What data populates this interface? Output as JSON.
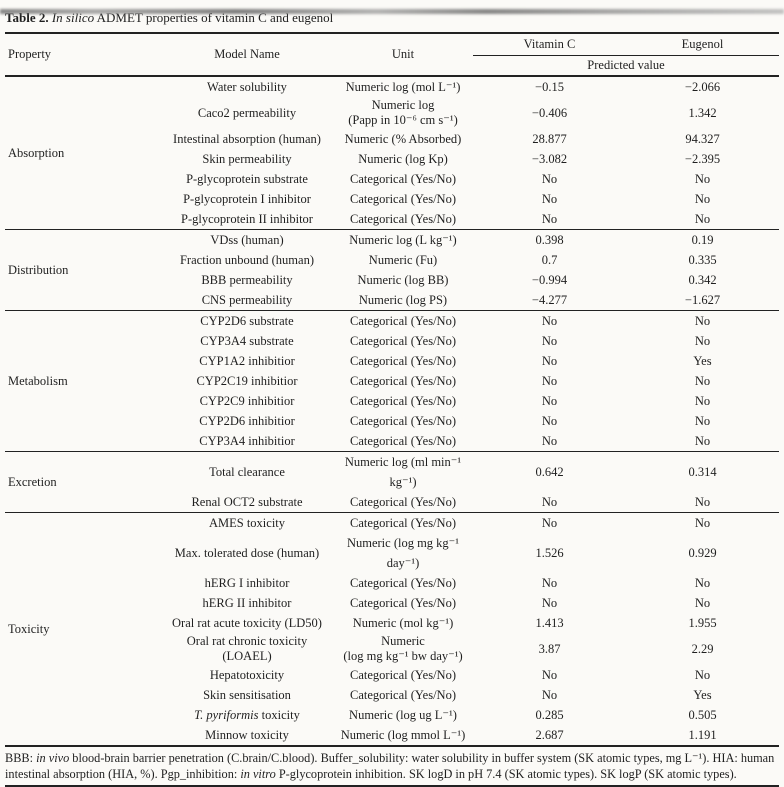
{
  "caption": {
    "prefix": "Table 2. ",
    "italic_part": "In silico",
    "rest": " ADMET properties of vitamin C and eugenol"
  },
  "header": {
    "property": "Property",
    "model_name": "Model Name",
    "unit": "Unit",
    "vitamin_c": "Vitamin C",
    "eugenol": "Eugenol",
    "predicted_value": "Predicted value"
  },
  "colors": {
    "text": "#1f1f1f",
    "rule": "#222222",
    "background": "#fbfaf7"
  },
  "sections": [
    {
      "property": "Absorption",
      "rows": [
        {
          "model": "Water solubility",
          "unit": "Numeric log (mol L⁻¹)",
          "vitamin_c": "−0.15",
          "eugenol": "−2.066"
        },
        {
          "model": "Caco2 permeability",
          "unit": "Numeric log\n(Papp in 10⁻⁶ cm s⁻¹)",
          "vitamin_c": "−0.406",
          "eugenol": "1.342"
        },
        {
          "model": "Intestinal absorption (human)",
          "unit": "Numeric (% Absorbed)",
          "vitamin_c": "28.877",
          "eugenol": "94.327"
        },
        {
          "model": "Skin permeability",
          "unit": "Numeric (log Kp)",
          "vitamin_c": "−3.082",
          "eugenol": "−2.395"
        },
        {
          "model": "P-glycoprotein substrate",
          "unit": "Categorical (Yes/No)",
          "vitamin_c": "No",
          "eugenol": "No"
        },
        {
          "model": "P-glycoprotein I inhibitor",
          "unit": "Categorical (Yes/No)",
          "vitamin_c": "No",
          "eugenol": "No"
        },
        {
          "model": "P-glycoprotein II inhibitor",
          "unit": "Categorical (Yes/No)",
          "vitamin_c": "No",
          "eugenol": "No"
        }
      ]
    },
    {
      "property": "Distribution",
      "rows": [
        {
          "model": "VDss (human)",
          "unit": "Numeric log (L kg⁻¹)",
          "vitamin_c": "0.398",
          "eugenol": "0.19"
        },
        {
          "model": "Fraction unbound (human)",
          "unit": "Numeric (Fu)",
          "vitamin_c": "0.7",
          "eugenol": "0.335"
        },
        {
          "model": "BBB permeability",
          "unit": "Numeric (log BB)",
          "vitamin_c": "−0.994",
          "eugenol": "0.342"
        },
        {
          "model": "CNS permeability",
          "unit": "Numeric (log PS)",
          "vitamin_c": "−4.277",
          "eugenol": "−1.627"
        }
      ]
    },
    {
      "property": "Metabolism",
      "rows": [
        {
          "model": "CYP2D6 substrate",
          "unit": "Categorical (Yes/No)",
          "vitamin_c": "No",
          "eugenol": "No"
        },
        {
          "model": "CYP3A4 substrate",
          "unit": "Categorical (Yes/No)",
          "vitamin_c": "No",
          "eugenol": "No"
        },
        {
          "model": "CYP1A2 inhibitior",
          "unit": "Categorical (Yes/No)",
          "vitamin_c": "No",
          "eugenol": "Yes"
        },
        {
          "model": "CYP2C19 inhibitior",
          "unit": "Categorical (Yes/No)",
          "vitamin_c": "No",
          "eugenol": "No"
        },
        {
          "model": "CYP2C9 inhibitior",
          "unit": "Categorical (Yes/No)",
          "vitamin_c": "No",
          "eugenol": "No"
        },
        {
          "model": "CYP2D6 inhibitior",
          "unit": "Categorical (Yes/No)",
          "vitamin_c": "No",
          "eugenol": "No"
        },
        {
          "model": "CYP3A4 inhibitior",
          "unit": "Categorical (Yes/No)",
          "vitamin_c": "No",
          "eugenol": "No"
        }
      ]
    },
    {
      "property": "Excretion",
      "rows": [
        {
          "model": "Total clearance",
          "unit": "Numeric log (ml min⁻¹ kg⁻¹)",
          "vitamin_c": "0.642",
          "eugenol": "0.314"
        },
        {
          "model": "Renal OCT2 substrate",
          "unit": "Categorical (Yes/No)",
          "vitamin_c": "No",
          "eugenol": "No"
        }
      ]
    },
    {
      "property": "Toxicity",
      "rows": [
        {
          "model": "AMES toxicity",
          "unit": "Categorical (Yes/No)",
          "vitamin_c": "No",
          "eugenol": "No"
        },
        {
          "model": "Max. tolerated dose (human)",
          "unit": "Numeric (log mg kg⁻¹ day⁻¹)",
          "vitamin_c": "1.526",
          "eugenol": "0.929"
        },
        {
          "model": "hERG I inhibitor",
          "unit": "Categorical (Yes/No)",
          "vitamin_c": "No",
          "eugenol": "No"
        },
        {
          "model": "hERG II inhibitor",
          "unit": "Categorical (Yes/No)",
          "vitamin_c": "No",
          "eugenol": "No"
        },
        {
          "model": "Oral rat acute toxicity (LD50)",
          "unit": "Numeric (mol kg⁻¹)",
          "vitamin_c": "1.413",
          "eugenol": "1.955"
        },
        {
          "model": "Oral rat chronic toxicity\n(LOAEL)",
          "unit": "Numeric\n(log mg kg⁻¹ bw day⁻¹)",
          "vitamin_c": "3.87",
          "eugenol": "2.29"
        },
        {
          "model": "Hepatotoxicity",
          "unit": "Categorical (Yes/No)",
          "vitamin_c": "No",
          "eugenol": "No"
        },
        {
          "model": "Skin sensitisation",
          "unit": "Categorical (Yes/No)",
          "vitamin_c": "No",
          "eugenol": "Yes"
        },
        {
          "model": [
            {
              "t": "T. pyriformis",
              "i": true
            },
            {
              "t": " toxicity",
              "i": false
            }
          ],
          "unit": "Numeric (log ug L⁻¹)",
          "vitamin_c": "0.285",
          "eugenol": "0.505"
        },
        {
          "model": "Minnow toxicity",
          "unit": "Numeric (log mmol L⁻¹)",
          "vitamin_c": "2.687",
          "eugenol": "1.191"
        }
      ]
    }
  ],
  "footnote_segments": [
    {
      "text": "BBB: ",
      "italic": false
    },
    {
      "text": "in vivo",
      "italic": true
    },
    {
      "text": " blood-brain barrier penetration (C.brain/C.blood). Buffer_solubility: water solubility in buffer system (SK atomic types, mg L⁻¹). HIA: human intestinal absorption (HIA, %). Pgp_inhibition: ",
      "italic": false
    },
    {
      "text": "in vitro",
      "italic": true
    },
    {
      "text": " P-glycoprotein inhibition. SK logD in pH 7.4 (SK atomic types). SK logP (SK atomic types).",
      "italic": false
    }
  ]
}
